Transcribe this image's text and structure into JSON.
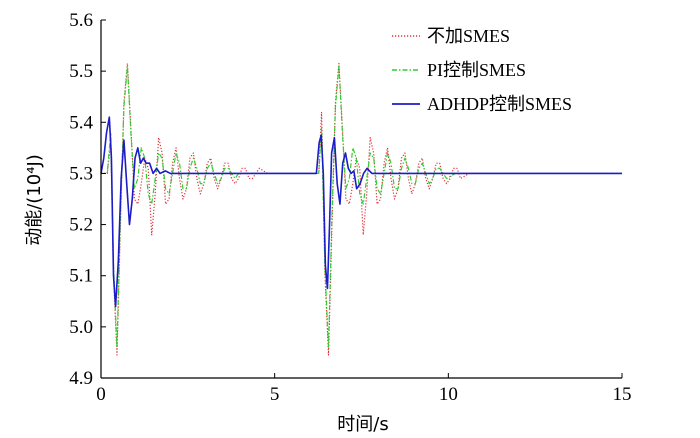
{
  "chart_data": {
    "type": "line",
    "xlabel": "时间/s",
    "ylabel": "动能/(10⁴J)",
    "xlim": [
      0,
      15
    ],
    "ylim": [
      4.9,
      5.6
    ],
    "xticks": [
      "0",
      "5",
      "10",
      "15"
    ],
    "yticks": [
      "4.9",
      "5.0",
      "5.1",
      "5.2",
      "5.3",
      "5.4",
      "5.5",
      "5.6"
    ],
    "grid": false,
    "legend_position": "top-right",
    "series": [
      {
        "name": "不加SMES",
        "color": "#e0303a",
        "dash": "dotted",
        "x": [
          0,
          0.18,
          0.28,
          0.36,
          0.46,
          0.56,
          0.66,
          0.76,
          0.86,
          0.96,
          1.06,
          1.16,
          1.26,
          1.36,
          1.46,
          1.56,
          1.66,
          1.76,
          1.86,
          1.96,
          2.06,
          2.16,
          2.26,
          2.36,
          2.46,
          2.56,
          2.66,
          2.76,
          2.86,
          2.96,
          3.06,
          3.16,
          3.26,
          3.36,
          3.46,
          3.56,
          3.66,
          3.76,
          3.86,
          3.96,
          4.06,
          4.16,
          4.26,
          4.36,
          4.46,
          4.56,
          4.8,
          5.2,
          5.6,
          6.0,
          6.2,
          6.27,
          6.35,
          6.45,
          6.55,
          6.65,
          6.75,
          6.85,
          6.95,
          7.05,
          7.15,
          7.25,
          7.35,
          7.45,
          7.55,
          7.65,
          7.75,
          7.85,
          7.95,
          8.05,
          8.15,
          8.25,
          8.35,
          8.45,
          8.55,
          8.65,
          8.75,
          8.85,
          8.95,
          9.05,
          9.15,
          9.25,
          9.35,
          9.45,
          9.55,
          9.65,
          9.75,
          9.85,
          9.95,
          10.05,
          10.15,
          10.25,
          10.35,
          10.6,
          11.0,
          12.0,
          13.0,
          14.0,
          15.0
        ],
        "y": [
          5.3,
          5.3,
          5.36,
          5.1,
          4.945,
          5.2,
          5.44,
          5.515,
          5.39,
          5.25,
          5.24,
          5.28,
          5.33,
          5.31,
          5.18,
          5.26,
          5.37,
          5.34,
          5.24,
          5.25,
          5.32,
          5.35,
          5.29,
          5.25,
          5.27,
          5.33,
          5.34,
          5.29,
          5.26,
          5.28,
          5.32,
          5.33,
          5.29,
          5.27,
          5.29,
          5.32,
          5.32,
          5.29,
          5.28,
          5.29,
          5.31,
          5.31,
          5.29,
          5.29,
          5.3,
          5.31,
          5.3,
          5.3,
          5.3,
          5.3,
          5.3,
          5.3,
          5.42,
          5.1,
          4.945,
          5.2,
          5.44,
          5.515,
          5.39,
          5.25,
          5.24,
          5.28,
          5.33,
          5.31,
          5.18,
          5.26,
          5.37,
          5.34,
          5.24,
          5.25,
          5.32,
          5.35,
          5.29,
          5.25,
          5.27,
          5.33,
          5.34,
          5.29,
          5.26,
          5.28,
          5.32,
          5.33,
          5.29,
          5.27,
          5.29,
          5.32,
          5.32,
          5.29,
          5.28,
          5.29,
          5.31,
          5.31,
          5.29,
          5.3,
          5.3,
          5.3,
          5.3,
          5.3,
          5.3
        ]
      },
      {
        "name": "PI控制SMES",
        "color": "#33cc33",
        "dash": "dashdot",
        "x": [
          0,
          0.18,
          0.28,
          0.36,
          0.46,
          0.56,
          0.66,
          0.76,
          0.86,
          0.96,
          1.06,
          1.16,
          1.26,
          1.36,
          1.46,
          1.56,
          1.66,
          1.76,
          1.86,
          1.96,
          2.06,
          2.16,
          2.26,
          2.36,
          2.46,
          2.56,
          2.66,
          2.76,
          2.86,
          2.96,
          3.06,
          3.16,
          3.26,
          3.36,
          3.46,
          3.56,
          3.66,
          3.76,
          3.86,
          3.96,
          4.2,
          4.6,
          5.0,
          5.6,
          6.0,
          6.2,
          6.27,
          6.35,
          6.45,
          6.55,
          6.65,
          6.75,
          6.85,
          6.95,
          7.05,
          7.15,
          7.25,
          7.35,
          7.45,
          7.55,
          7.65,
          7.75,
          7.85,
          7.95,
          8.05,
          8.15,
          8.25,
          8.35,
          8.45,
          8.55,
          8.65,
          8.75,
          8.85,
          8.95,
          9.05,
          9.15,
          9.25,
          9.35,
          9.45,
          9.55,
          9.65,
          9.75,
          9.85,
          9.95,
          10.2,
          10.6,
          11.0,
          12.0,
          13.0,
          14.0,
          15.0
        ],
        "y": [
          5.3,
          5.3,
          5.38,
          5.12,
          4.96,
          5.22,
          5.43,
          5.51,
          5.38,
          5.27,
          5.29,
          5.35,
          5.33,
          5.26,
          5.24,
          5.29,
          5.34,
          5.33,
          5.27,
          5.26,
          5.3,
          5.34,
          5.32,
          5.27,
          5.27,
          5.31,
          5.33,
          5.31,
          5.28,
          5.28,
          5.31,
          5.32,
          5.3,
          5.28,
          5.29,
          5.31,
          5.31,
          5.3,
          5.29,
          5.3,
          5.3,
          5.3,
          5.3,
          5.3,
          5.3,
          5.3,
          5.3,
          5.39,
          5.11,
          4.96,
          5.22,
          5.43,
          5.51,
          5.38,
          5.27,
          5.29,
          5.35,
          5.33,
          5.26,
          5.24,
          5.29,
          5.34,
          5.33,
          5.27,
          5.26,
          5.3,
          5.34,
          5.32,
          5.27,
          5.27,
          5.31,
          5.33,
          5.31,
          5.28,
          5.28,
          5.31,
          5.32,
          5.3,
          5.28,
          5.29,
          5.31,
          5.31,
          5.3,
          5.29,
          5.3,
          5.3,
          5.3,
          5.3,
          5.3,
          5.3,
          5.3
        ]
      },
      {
        "name": "ADHDP控制SMES",
        "color": "#1c1cc8",
        "dash": "solid",
        "x": [
          0,
          0.08,
          0.16,
          0.24,
          0.3,
          0.36,
          0.42,
          0.5,
          0.58,
          0.66,
          0.74,
          0.82,
          0.9,
          0.98,
          1.06,
          1.14,
          1.22,
          1.3,
          1.4,
          1.5,
          1.6,
          1.7,
          1.85,
          2.0,
          2.2,
          2.5,
          3.0,
          3.5,
          4.0,
          5.0,
          6.0,
          6.2,
          6.28,
          6.34,
          6.4,
          6.46,
          6.52,
          6.58,
          6.64,
          6.72,
          6.8,
          6.88,
          6.96,
          7.04,
          7.12,
          7.2,
          7.28,
          7.36,
          7.46,
          7.56,
          7.66,
          7.8,
          8.0,
          8.3,
          8.7,
          9.2,
          10.0,
          11.0,
          12.0,
          13.0,
          14.0,
          15.0
        ],
        "y": [
          5.3,
          5.33,
          5.38,
          5.41,
          5.33,
          5.1,
          5.04,
          5.13,
          5.29,
          5.365,
          5.28,
          5.2,
          5.25,
          5.33,
          5.35,
          5.32,
          5.33,
          5.32,
          5.32,
          5.3,
          5.31,
          5.3,
          5.305,
          5.3,
          5.3,
          5.3,
          5.3,
          5.3,
          5.3,
          5.3,
          5.3,
          5.3,
          5.36,
          5.375,
          5.3,
          5.12,
          5.075,
          5.2,
          5.34,
          5.37,
          5.28,
          5.24,
          5.32,
          5.34,
          5.31,
          5.3,
          5.305,
          5.27,
          5.28,
          5.3,
          5.31,
          5.3,
          5.3,
          5.3,
          5.3,
          5.3,
          5.3,
          5.3,
          5.3,
          5.3,
          5.3,
          5.3
        ]
      }
    ]
  }
}
